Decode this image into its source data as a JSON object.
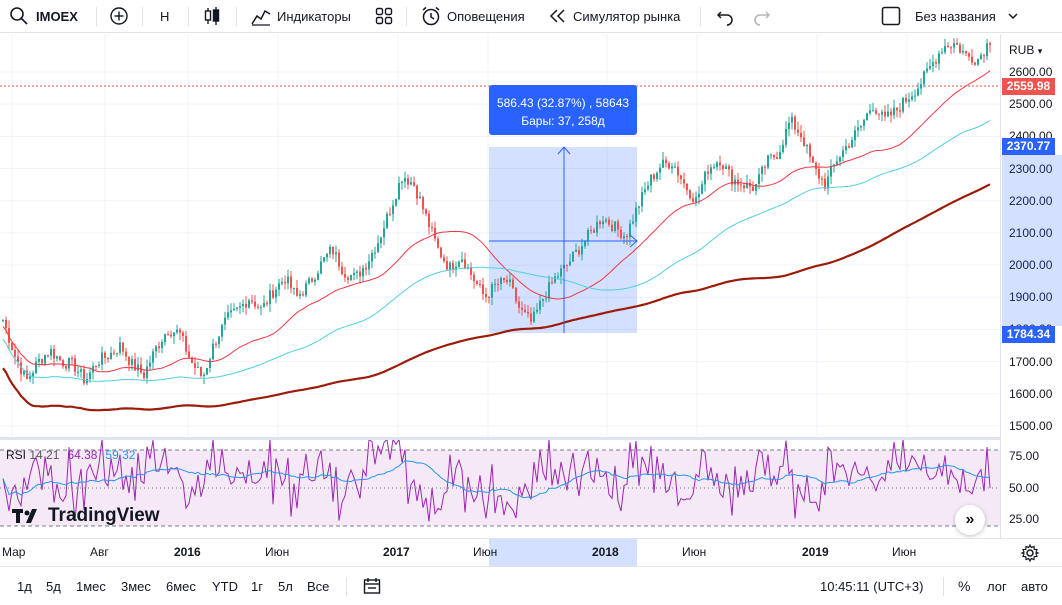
{
  "toolbar": {
    "symbol": "IMOEX",
    "interval": "H",
    "indicators_label": "Индикаторы",
    "alerts_label": "Оповещения",
    "replay_label": "Симулятор рынка",
    "layout_name": "Без названия"
  },
  "price_scale": {
    "currency": "RUB",
    "labels": [
      "2600.00",
      "2500.00",
      "2400.00",
      "2300.00",
      "2200.00",
      "2100.00",
      "2000.00",
      "1900.00",
      "1800.00",
      "1700.00",
      "1600.00",
      "1500.00"
    ],
    "badge_current": "2559.98",
    "badge_top": "2370.77",
    "badge_bottom": "1784.34",
    "rsi_labels": [
      "75.00",
      "50.00",
      "25.00"
    ]
  },
  "measure": {
    "line1": "586.43 (32.87%) , 58643",
    "line2": "Бары: 37, 258д"
  },
  "rsi": {
    "title": "RSI",
    "params": "14 21",
    "value": "64.38",
    "ma_value": "59.32"
  },
  "brand": "TradingView",
  "time_axis": [
    "Мар",
    "Авг",
    "2016",
    "Июн",
    "2017",
    "Июн",
    "2018",
    "Июн",
    "2019",
    "Июн"
  ],
  "bottom": {
    "ranges": [
      "1д",
      "5д",
      "1мес",
      "3мес",
      "6мес",
      "YTD",
      "1г",
      "5л",
      "Все"
    ],
    "clock": "10:45:11 (UTC+3)",
    "percent": "%",
    "log": "лог",
    "auto": "авто"
  },
  "colors": {
    "up": "#26a69a",
    "down": "#ef5350",
    "ma_fast": "#f23645",
    "ma_mid": "#4dd0e1",
    "ma_slow": "#9c1c0a",
    "rsi": "#9c27b0",
    "rsi_ma": "#2196f3",
    "accent": "#2962ff"
  },
  "chart_data": {
    "type": "candlestick",
    "price_range": [
      1450,
      2680
    ],
    "close_path": [
      1830,
      1720,
      1640,
      1700,
      1735,
      1700,
      1690,
      1640,
      1700,
      1720,
      1750,
      1690,
      1660,
      1740,
      1800,
      1790,
      1700,
      1650,
      1760,
      1830,
      1860,
      1900,
      1860,
      1920,
      1960,
      1900,
      1940,
      2000,
      2050,
      1980,
      1960,
      2010,
      2080,
      2180,
      2280,
      2250,
      2150,
      2050,
      1990,
      2030,
      1960,
      1900,
      1940,
      1950,
      1860,
      1820,
      1900,
      1960,
      2000,
      2050,
      2100,
      2150,
      2120,
      2090,
      2180,
      2260,
      2310,
      2320,
      2250,
      2200,
      2300,
      2330,
      2270,
      2250,
      2240,
      2320,
      2350,
      2450,
      2400,
      2300,
      2250,
      2330,
      2380,
      2430,
      2500,
      2450,
      2480,
      2520,
      2560,
      2620,
      2680,
      2690,
      2650,
      2640,
      2700
    ]
  }
}
